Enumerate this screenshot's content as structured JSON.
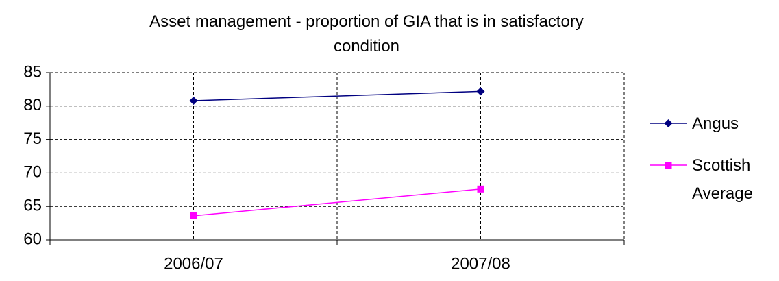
{
  "chart_data": {
    "type": "line",
    "title": "Asset management - proportion of GIA that is in satisfactory condition",
    "categories": [
      "2006/07",
      "2007/08"
    ],
    "series": [
      {
        "name": "Angus",
        "color": "#000080",
        "marker": "diamond",
        "values": [
          80.8,
          82.2
        ]
      },
      {
        "name": "Scottish Average",
        "color": "#ff00ff",
        "marker": "square",
        "values": [
          63.6,
          67.6
        ]
      }
    ],
    "ylim": [
      60,
      85
    ],
    "yticks": [
      60,
      65,
      70,
      75,
      80,
      85
    ],
    "grid": true,
    "legend": "right"
  }
}
